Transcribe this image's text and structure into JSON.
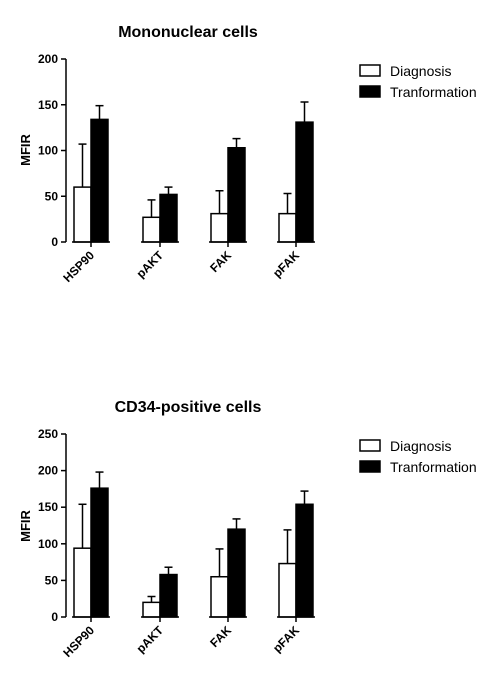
{
  "chart_data": [
    {
      "type": "bar",
      "title": "Mononuclear cells",
      "ylabel": "MFIR",
      "xlabel": "",
      "categories": [
        "HSP90",
        "pAKT",
        "FAK",
        "pFAK"
      ],
      "ylim": [
        0,
        200
      ],
      "yticks": [
        0,
        50,
        100,
        150,
        200
      ],
      "legend_position": "top-right",
      "series": [
        {
          "name": "Diagnosis",
          "values": [
            60,
            27,
            31,
            31
          ],
          "errors": [
            47,
            19,
            25,
            22
          ],
          "color": "#ffffff"
        },
        {
          "name": "Tranformation",
          "values": [
            134,
            52,
            103,
            131
          ],
          "errors": [
            15,
            8,
            10,
            22
          ],
          "color": "#000000"
        }
      ]
    },
    {
      "type": "bar",
      "title": "CD34-positive cells",
      "ylabel": "MFIR",
      "xlabel": "",
      "categories": [
        "HSP90",
        "pAKT",
        "FAK",
        "pFAK"
      ],
      "ylim": [
        0,
        250
      ],
      "yticks": [
        0,
        50,
        100,
        150,
        200,
        250
      ],
      "legend_position": "top-right",
      "series": [
        {
          "name": "Diagnosis",
          "values": [
            94,
            20,
            55,
            73
          ],
          "errors": [
            60,
            8,
            38,
            46
          ],
          "color": "#ffffff"
        },
        {
          "name": "Tranformation",
          "values": [
            176,
            58,
            120,
            154
          ],
          "errors": [
            22,
            10,
            14,
            18
          ],
          "color": "#000000"
        }
      ]
    }
  ]
}
